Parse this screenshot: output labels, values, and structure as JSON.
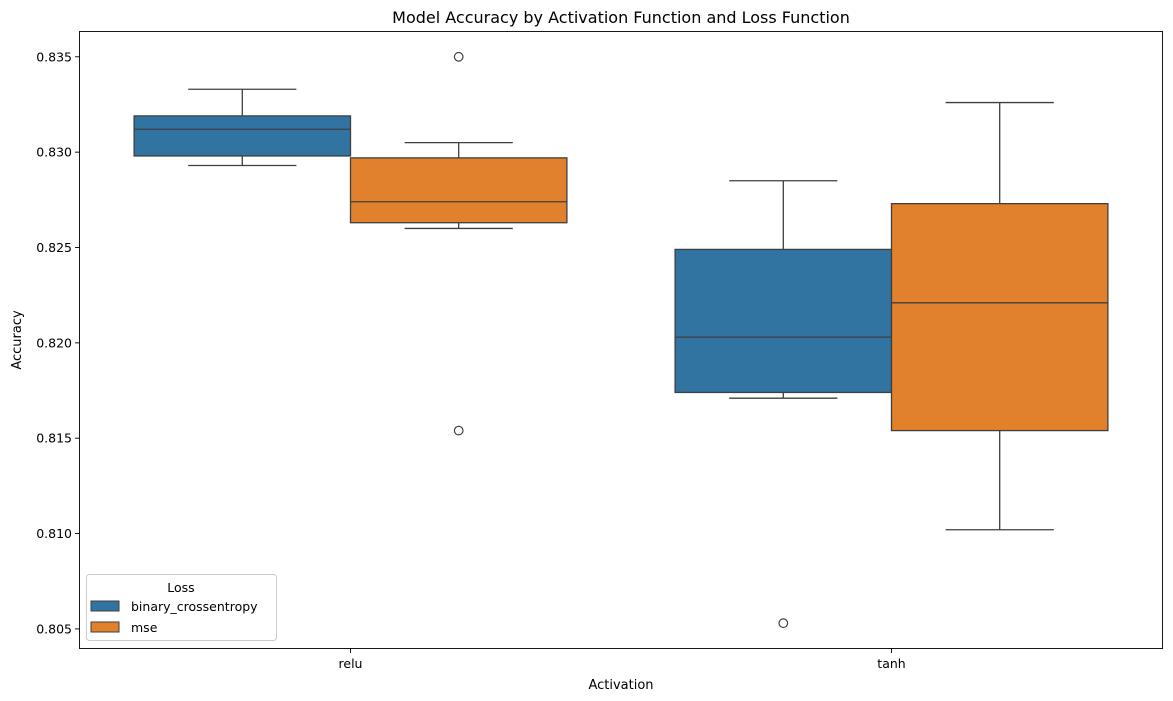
{
  "chart_data": {
    "type": "box",
    "title": "Model Accuracy by Activation Function and Loss Function",
    "xlabel": "Activation",
    "ylabel": "Accuracy",
    "categories": [
      "relu",
      "tanh"
    ],
    "ylim": [
      0.804,
      0.8363
    ],
    "yticks": [
      0.805,
      0.81,
      0.815,
      0.82,
      0.825,
      0.83,
      0.835
    ],
    "yticklabels": [
      "0.805",
      "0.810",
      "0.815",
      "0.820",
      "0.825",
      "0.830",
      "0.835"
    ],
    "grid": false,
    "legend": {
      "title": "Loss",
      "placement": "lower-left",
      "entries": [
        "binary_crossentropy",
        "mse"
      ]
    },
    "series": [
      {
        "name": "binary_crossentropy",
        "color": "#3274a1",
        "boxes": [
          {
            "category": "relu",
            "whisker_low": 0.8293,
            "q1": 0.8298,
            "median": 0.8312,
            "q3": 0.8319,
            "whisker_high": 0.8333,
            "outliers": []
          },
          {
            "category": "tanh",
            "whisker_low": 0.8171,
            "q1": 0.8174,
            "median": 0.8203,
            "q3": 0.8249,
            "whisker_high": 0.8285,
            "outliers": [
              0.8053
            ]
          }
        ]
      },
      {
        "name": "mse",
        "color": "#e1812c",
        "boxes": [
          {
            "category": "relu",
            "whisker_low": 0.826,
            "q1": 0.8263,
            "median": 0.8274,
            "q3": 0.8297,
            "whisker_high": 0.8305,
            "outliers": [
              0.835,
              0.8154
            ]
          },
          {
            "category": "tanh",
            "whisker_low": 0.8102,
            "q1": 0.8154,
            "median": 0.8221,
            "q3": 0.8273,
            "whisker_high": 0.8326,
            "outliers": []
          }
        ]
      }
    ]
  }
}
